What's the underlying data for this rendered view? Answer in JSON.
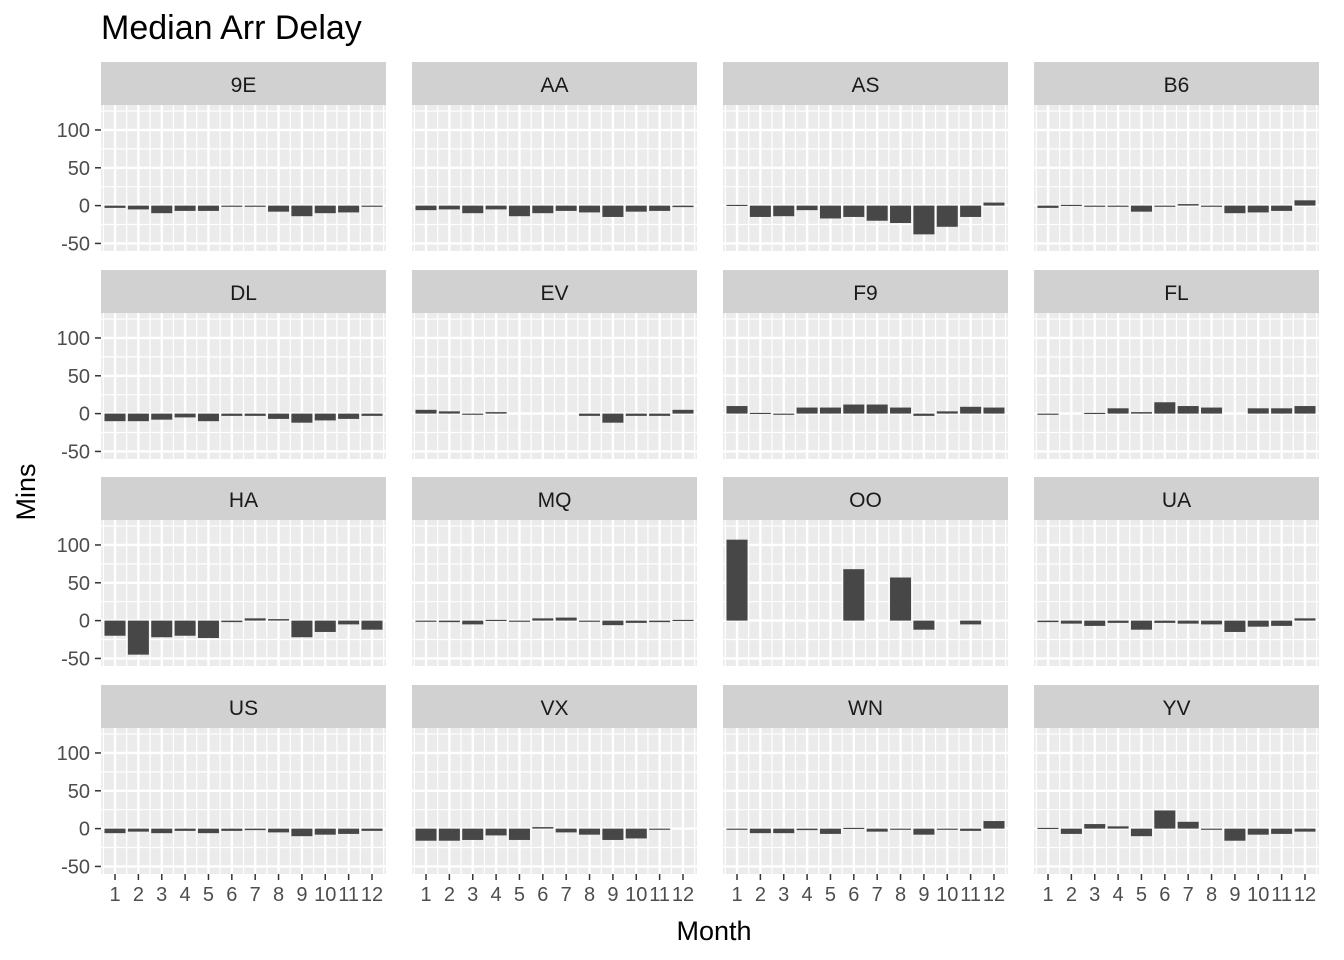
{
  "chart_data": {
    "type": "bar",
    "title": "Median Arr Delay",
    "xlabel": "Month",
    "ylabel": "Mins",
    "x": [
      "1",
      "2",
      "3",
      "4",
      "5",
      "6",
      "7",
      "8",
      "9",
      "10",
      "11",
      "12"
    ],
    "ylim": [
      -60,
      133
    ],
    "yticks": [
      -50,
      0,
      50,
      100
    ],
    "ytick_labels": [
      "-50",
      "0",
      "50",
      "100"
    ],
    "bar_color": "#474747",
    "panel_bg": "#ebebeb",
    "strip_bg": "#d1d1d1",
    "grid_color": "#ffffff",
    "facets": [
      {
        "carrier": "9E",
        "values": [
          -3,
          -5,
          -10,
          -7,
          -7,
          -1,
          -1,
          -8,
          -14,
          -10,
          -9,
          -1
        ]
      },
      {
        "carrier": "AA",
        "values": [
          -6,
          -5,
          -10,
          -5,
          -14,
          -10,
          -7,
          -9,
          -15,
          -8,
          -7,
          -2
        ]
      },
      {
        "carrier": "AS",
        "values": [
          1,
          -15,
          -14,
          -6,
          -17,
          -15,
          -20,
          -23,
          -38,
          -28,
          -15,
          4
        ]
      },
      {
        "carrier": "B6",
        "values": [
          -3,
          1,
          -1,
          0,
          -8,
          -1,
          2,
          -1,
          -10,
          -9,
          -7,
          7
        ]
      },
      {
        "carrier": "DL",
        "values": [
          -10,
          -10,
          -8,
          -5,
          -10,
          -3,
          -3,
          -7,
          -12,
          -9,
          -7,
          -3
        ]
      },
      {
        "carrier": "EV",
        "values": [
          5,
          3,
          -1,
          2,
          null,
          null,
          null,
          -3,
          -12,
          -3,
          -3,
          5
        ]
      },
      {
        "carrier": "F9",
        "values": [
          10,
          1,
          -1,
          8,
          8,
          12,
          12,
          8,
          -3,
          3,
          9,
          8
        ]
      },
      {
        "carrier": "FL",
        "values": [
          -1,
          null,
          1,
          7,
          2,
          15,
          10,
          8,
          null,
          7,
          7,
          10
        ]
      },
      {
        "carrier": "HA",
        "values": [
          -20,
          -45,
          -22,
          -20,
          -23,
          -2,
          3,
          2,
          -22,
          -15,
          -5,
          -12
        ]
      },
      {
        "carrier": "MQ",
        "values": [
          -1,
          -2,
          -5,
          1,
          -1,
          3,
          4,
          -1,
          -6,
          -3,
          -2,
          1
        ]
      },
      {
        "carrier": "OO",
        "values": [
          107,
          null,
          null,
          null,
          null,
          68,
          null,
          57,
          -12,
          null,
          -5,
          null
        ]
      },
      {
        "carrier": "UA",
        "values": [
          -2,
          -4,
          -7,
          -3,
          -12,
          -3,
          -4,
          -5,
          -15,
          -8,
          -7,
          3
        ]
      },
      {
        "carrier": "US",
        "values": [
          -6,
          -4,
          -6,
          -3,
          -6,
          -3,
          -2,
          -5,
          -10,
          -8,
          -7,
          -3
        ]
      },
      {
        "carrier": "VX",
        "values": [
          -16,
          -16,
          -15,
          -9,
          -15,
          2,
          -5,
          -8,
          -15,
          -13,
          -1,
          null
        ]
      },
      {
        "carrier": "WN",
        "values": [
          -1,
          -6,
          -6,
          -2,
          -7,
          1,
          -4,
          -1,
          -8,
          -1,
          -3,
          10
        ]
      },
      {
        "carrier": "YV",
        "values": [
          1,
          -7,
          6,
          3,
          -10,
          24,
          9,
          0,
          -16,
          -8,
          -7,
          -4
        ]
      }
    ]
  }
}
